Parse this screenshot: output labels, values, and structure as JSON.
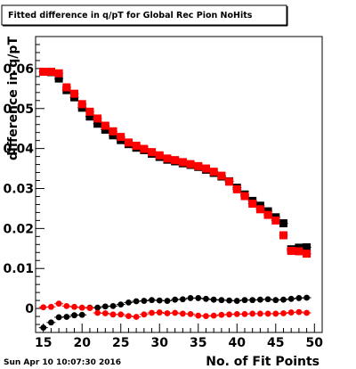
{
  "title": "Fitted difference in q/pT for Global Rec Pion NoHits",
  "timestamp": "Sun Apr 10 10:07:30 2016",
  "colors": {
    "black_series": "#000000",
    "red_series": "#ff0000",
    "frame": "#000000",
    "background": "#ffffff"
  },
  "chart_data": {
    "type": "scatter",
    "title": "Fitted difference in q/pT for Global Rec Pion NoHits",
    "xlabel": "No. of Fit Points",
    "ylabel": "difference in q/pT",
    "xlim": [
      14,
      51
    ],
    "ylim": [
      -0.006,
      0.068
    ],
    "grid": false,
    "legend": "none",
    "x_ticks": [
      15,
      20,
      25,
      30,
      35,
      40,
      45,
      50
    ],
    "x_tick_labels": [
      "15",
      "20",
      "25",
      "30",
      "35",
      "40",
      "45",
      "50"
    ],
    "y_ticks": [
      0,
      0.01,
      0.02,
      0.03,
      0.04,
      0.05,
      0.06
    ],
    "y_tick_labels": [
      "0",
      "0.01",
      "0.02",
      "0.03",
      "0.04",
      "0.05",
      "0.06"
    ],
    "x": [
      15,
      16,
      17,
      18,
      19,
      20,
      21,
      22,
      23,
      24,
      25,
      26,
      27,
      28,
      29,
      30,
      31,
      32,
      33,
      34,
      35,
      36,
      37,
      38,
      39,
      40,
      41,
      42,
      43,
      44,
      45,
      46,
      47,
      48,
      49
    ],
    "series": [
      {
        "marker": "square",
        "color": "#000000",
        "values": [
          0.0592,
          0.0591,
          0.0575,
          0.0546,
          0.0528,
          0.0502,
          0.048,
          0.0462,
          0.0447,
          0.0433,
          0.0421,
          0.0411,
          0.0402,
          0.0396,
          0.0387,
          0.0379,
          0.0372,
          0.0368,
          0.0363,
          0.0359,
          0.0354,
          0.0347,
          0.0339,
          0.033,
          0.0318,
          0.0302,
          0.0285,
          0.0269,
          0.0257,
          0.0243,
          0.0228,
          0.0213,
          0.0148,
          0.0152,
          0.0153
        ]
      },
      {
        "marker": "square",
        "color": "#ff0000",
        "values": [
          0.0592,
          0.0592,
          0.0588,
          0.0553,
          0.0537,
          0.0511,
          0.0492,
          0.0475,
          0.0457,
          0.0443,
          0.0429,
          0.0415,
          0.0407,
          0.0399,
          0.0391,
          0.0383,
          0.0375,
          0.0371,
          0.0366,
          0.0361,
          0.0356,
          0.035,
          0.0342,
          0.0332,
          0.0317,
          0.0298,
          0.0281,
          0.0262,
          0.0248,
          0.0234,
          0.022,
          0.0183,
          0.0144,
          0.0143,
          0.0137
        ]
      },
      {
        "marker": "circle",
        "color": "#000000",
        "values": [
          -0.0048,
          -0.0035,
          -0.0022,
          -0.0021,
          -0.0017,
          -0.0016,
          0.0002,
          0.0002,
          0.0005,
          0.0006,
          0.001,
          0.0015,
          0.0018,
          0.0019,
          0.0021,
          0.002,
          0.0019,
          0.0022,
          0.0023,
          0.0026,
          0.0026,
          0.0024,
          0.0022,
          0.0021,
          0.002,
          0.0019,
          0.0021,
          0.0021,
          0.0022,
          0.0023,
          0.0021,
          0.0022,
          0.0024,
          0.0026,
          0.0027
        ]
      },
      {
        "marker": "circle",
        "color": "#ff0000",
        "values": [
          0.0003,
          0.0004,
          0.0012,
          0.0006,
          0.0004,
          0.0002,
          0.0001,
          -0.0011,
          -0.0012,
          -0.0015,
          -0.0015,
          -0.0019,
          -0.0021,
          -0.0015,
          -0.0011,
          -0.001,
          -0.0012,
          -0.0011,
          -0.0013,
          -0.0014,
          -0.0018,
          -0.0019,
          -0.0018,
          -0.0016,
          -0.0015,
          -0.0014,
          -0.0014,
          -0.0013,
          -0.0013,
          -0.0013,
          -0.0013,
          -0.0012,
          -0.001,
          -0.0009,
          -0.0011
        ]
      }
    ]
  }
}
